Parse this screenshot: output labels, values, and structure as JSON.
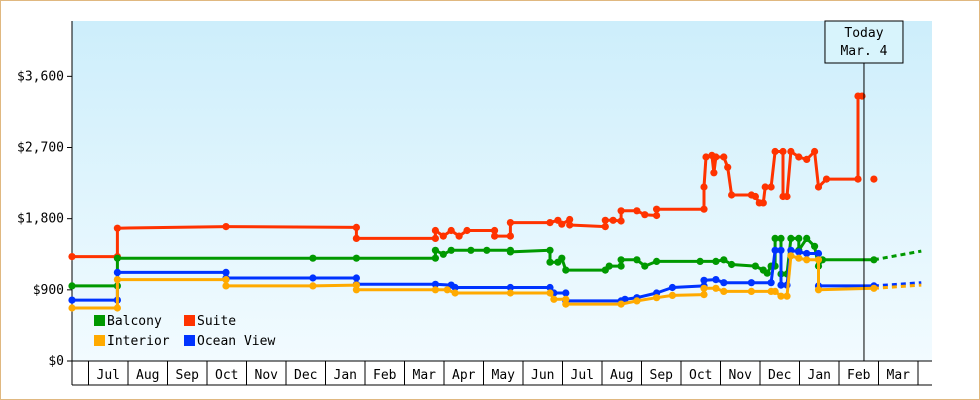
{
  "chart_data": {
    "type": "line",
    "title": "",
    "xlabel": "",
    "ylabel": "",
    "ylim": [
      0,
      4300
    ],
    "yticks": [
      {
        "value": 0,
        "label": "$0"
      },
      {
        "value": 900,
        "label": "$900"
      },
      {
        "value": 1800,
        "label": "$1,800"
      },
      {
        "value": 2700,
        "label": "$2,700"
      },
      {
        "value": 3600,
        "label": "$3,600"
      }
    ],
    "xlim": [
      0,
      21.5
    ],
    "x_unit": "months from June (year 1)",
    "month_labels": [
      "Jul",
      "Aug",
      "Sep",
      "Oct",
      "Nov",
      "Dec",
      "Jan",
      "Feb",
      "Mar",
      "Apr",
      "May",
      "Jun",
      "Jul",
      "Aug",
      "Sep",
      "Oct",
      "Nov",
      "Dec",
      "Jan",
      "Feb",
      "Mar"
    ],
    "today": {
      "line1": "Today",
      "line2": "Mar. 4",
      "x": 20.05
    },
    "grid": false,
    "legend_position": "bottom-left",
    "series": [
      {
        "name": "Suite",
        "color": "#ff3300",
        "points": [
          [
            0,
            1320
          ],
          [
            1.15,
            1320
          ],
          [
            1.15,
            1680
          ],
          [
            3.9,
            1700
          ],
          [
            7.2,
            1690
          ],
          [
            7.2,
            1550
          ],
          [
            9.2,
            1550
          ],
          [
            9.2,
            1650
          ],
          [
            9.4,
            1580
          ],
          [
            9.6,
            1650
          ],
          [
            9.8,
            1580
          ],
          [
            10.0,
            1650
          ],
          [
            10.7,
            1650
          ],
          [
            10.7,
            1580
          ],
          [
            11.1,
            1580
          ],
          [
            11.1,
            1750
          ],
          [
            12.1,
            1750
          ],
          [
            12.3,
            1780
          ],
          [
            12.4,
            1730
          ],
          [
            12.6,
            1790
          ],
          [
            12.6,
            1720
          ],
          [
            13.5,
            1700
          ],
          [
            13.5,
            1780
          ],
          [
            13.7,
            1780
          ],
          [
            13.9,
            1770
          ],
          [
            13.9,
            1900
          ],
          [
            14.3,
            1900
          ],
          [
            14.5,
            1850
          ],
          [
            14.8,
            1840
          ],
          [
            14.8,
            1920
          ],
          [
            16.0,
            1920
          ],
          [
            16.0,
            2200
          ],
          [
            16.05,
            2580
          ],
          [
            16.2,
            2600
          ],
          [
            16.25,
            2380
          ],
          [
            16.3,
            2580
          ],
          [
            16.5,
            2580
          ],
          [
            16.6,
            2450
          ],
          [
            16.7,
            2100
          ],
          [
            17.2,
            2100
          ],
          [
            17.3,
            2080
          ],
          [
            17.4,
            2000
          ],
          [
            17.5,
            2000
          ],
          [
            17.55,
            2200
          ],
          [
            17.7,
            2200
          ],
          [
            17.8,
            2650
          ],
          [
            18.0,
            2650
          ],
          [
            18.0,
            2080
          ],
          [
            18.1,
            2080
          ],
          [
            18.2,
            2650
          ],
          [
            18.4,
            2580
          ],
          [
            18.6,
            2550
          ],
          [
            18.8,
            2650
          ],
          [
            18.9,
            2200
          ],
          [
            19.1,
            2300
          ],
          [
            19.9,
            2300
          ],
          [
            19.9,
            3350
          ],
          [
            20.0,
            3350
          ]
        ],
        "extra_points": [
          [
            20.3,
            2300
          ]
        ]
      },
      {
        "name": "Balcony",
        "color": "#009900",
        "points": [
          [
            0,
            950
          ],
          [
            1.15,
            950
          ],
          [
            1.15,
            1300
          ],
          [
            6.1,
            1300
          ],
          [
            7.2,
            1300
          ],
          [
            9.2,
            1300
          ],
          [
            9.2,
            1400
          ],
          [
            9.4,
            1350
          ],
          [
            9.6,
            1400
          ],
          [
            10.1,
            1400
          ],
          [
            10.5,
            1400
          ],
          [
            11.1,
            1400
          ],
          [
            11.1,
            1380
          ],
          [
            12.1,
            1400
          ],
          [
            12.1,
            1250
          ],
          [
            12.3,
            1250
          ],
          [
            12.4,
            1300
          ],
          [
            12.5,
            1150
          ],
          [
            13.5,
            1150
          ],
          [
            13.6,
            1200
          ],
          [
            13.9,
            1200
          ],
          [
            13.9,
            1280
          ],
          [
            14.3,
            1280
          ],
          [
            14.5,
            1200
          ],
          [
            14.8,
            1260
          ],
          [
            15.9,
            1260
          ],
          [
            16.3,
            1260
          ],
          [
            16.5,
            1280
          ],
          [
            16.7,
            1220
          ],
          [
            17.3,
            1200
          ],
          [
            17.5,
            1150
          ],
          [
            17.6,
            1110
          ],
          [
            17.7,
            1200
          ],
          [
            17.8,
            1200
          ],
          [
            17.8,
            1550
          ],
          [
            17.95,
            1550
          ],
          [
            17.95,
            1100
          ],
          [
            18.1,
            1100
          ],
          [
            18.2,
            1550
          ],
          [
            18.4,
            1550
          ],
          [
            18.4,
            1400
          ],
          [
            18.6,
            1550
          ],
          [
            18.8,
            1450
          ],
          [
            18.9,
            1200
          ],
          [
            19.0,
            1280
          ],
          [
            20.3,
            1280
          ]
        ],
        "forecast": [
          [
            20.3,
            1280
          ],
          [
            21.5,
            1390
          ]
        ]
      },
      {
        "name": "Ocean View",
        "color": "#0033ff",
        "points": [
          [
            0,
            770
          ],
          [
            1.15,
            770
          ],
          [
            1.15,
            1120
          ],
          [
            3.9,
            1120
          ],
          [
            3.9,
            1050
          ],
          [
            6.1,
            1050
          ],
          [
            7.2,
            1050
          ],
          [
            7.2,
            970
          ],
          [
            9.2,
            970
          ],
          [
            9.6,
            960
          ],
          [
            9.7,
            930
          ],
          [
            11.1,
            930
          ],
          [
            12.1,
            930
          ],
          [
            12.2,
            860
          ],
          [
            12.5,
            860
          ],
          [
            12.5,
            760
          ],
          [
            13.9,
            760
          ],
          [
            14.0,
            780
          ],
          [
            14.3,
            800
          ],
          [
            14.8,
            860
          ],
          [
            15.2,
            930
          ],
          [
            16.0,
            950
          ],
          [
            16.0,
            1020
          ],
          [
            16.3,
            1030
          ],
          [
            16.5,
            990
          ],
          [
            17.2,
            990
          ],
          [
            17.7,
            990
          ],
          [
            17.8,
            1400
          ],
          [
            17.95,
            1400
          ],
          [
            17.95,
            960
          ],
          [
            18.1,
            960
          ],
          [
            18.2,
            1400
          ],
          [
            18.4,
            1380
          ],
          [
            18.6,
            1360
          ],
          [
            18.9,
            1360
          ],
          [
            18.9,
            950
          ],
          [
            20.3,
            950
          ]
        ],
        "forecast": [
          [
            20.3,
            950
          ],
          [
            21.5,
            990
          ]
        ]
      },
      {
        "name": "Interior",
        "color": "#ffaa00",
        "points": [
          [
            0,
            670
          ],
          [
            1.15,
            670
          ],
          [
            1.15,
            1030
          ],
          [
            3.9,
            1030
          ],
          [
            3.9,
            950
          ],
          [
            6.1,
            950
          ],
          [
            7.2,
            960
          ],
          [
            7.2,
            900
          ],
          [
            9.2,
            900
          ],
          [
            9.5,
            900
          ],
          [
            9.7,
            860
          ],
          [
            11.1,
            860
          ],
          [
            12.1,
            860
          ],
          [
            12.2,
            780
          ],
          [
            12.5,
            780
          ],
          [
            12.5,
            720
          ],
          [
            13.9,
            720
          ],
          [
            14.3,
            760
          ],
          [
            14.8,
            800
          ],
          [
            15.2,
            830
          ],
          [
            16.0,
            840
          ],
          [
            16.0,
            920
          ],
          [
            16.3,
            920
          ],
          [
            16.5,
            880
          ],
          [
            17.2,
            880
          ],
          [
            17.7,
            880
          ],
          [
            17.8,
            880
          ],
          [
            17.95,
            820
          ],
          [
            18.1,
            820
          ],
          [
            18.2,
            1330
          ],
          [
            18.4,
            1300
          ],
          [
            18.6,
            1280
          ],
          [
            18.9,
            1280
          ],
          [
            18.9,
            900
          ],
          [
            20.3,
            920
          ]
        ],
        "forecast": [
          [
            20.3,
            920
          ],
          [
            21.5,
            960
          ]
        ]
      }
    ]
  }
}
